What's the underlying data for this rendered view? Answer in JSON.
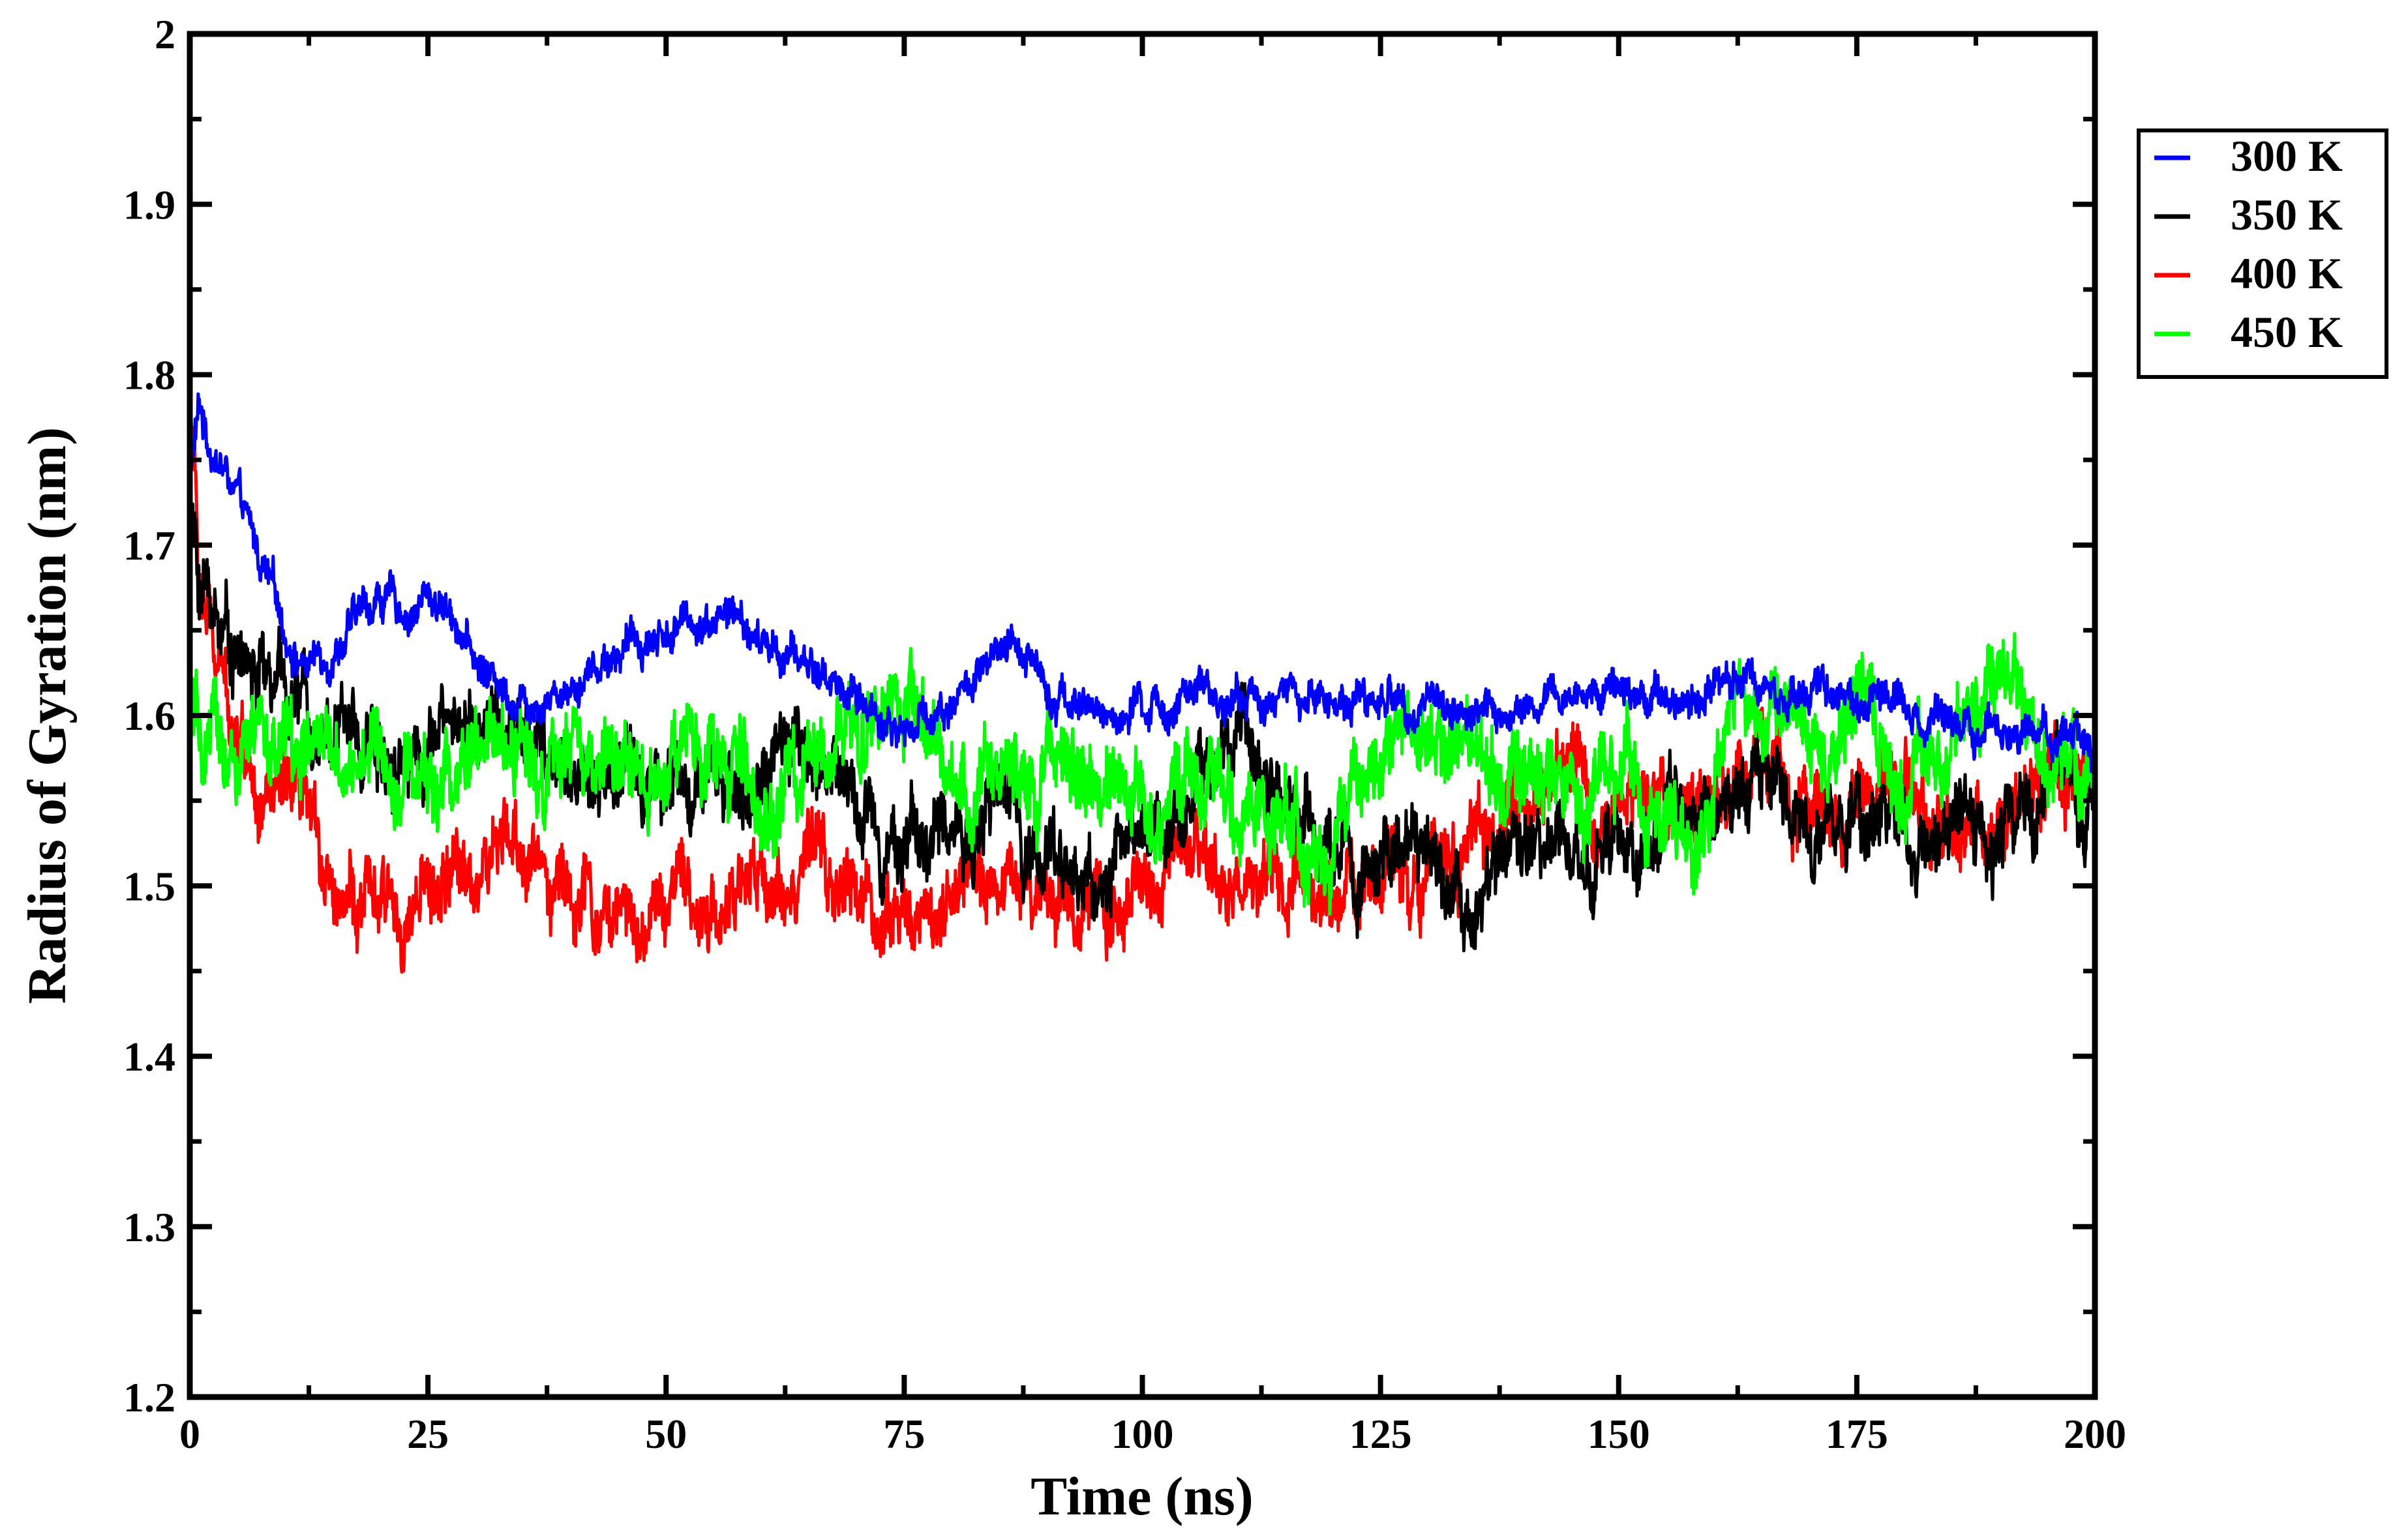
{
  "chart_data": {
    "type": "line",
    "title": "",
    "xlabel": "Time (ns)",
    "ylabel": "Radius of Gyration (nm)",
    "xlim": [
      0,
      200
    ],
    "ylim": [
      1.2,
      2.0
    ],
    "xticks": [
      "0",
      "25",
      "50",
      "75",
      "100",
      "125",
      "150",
      "175",
      "200"
    ],
    "yticks": [
      "1.2",
      "1.3",
      "1.4",
      "1.5",
      "1.6",
      "1.7",
      "1.8",
      "1.9",
      "2"
    ],
    "grid": false,
    "legend_position": "top-right, outside plot",
    "series": [
      {
        "name": "300 K",
        "color": "#0000ff",
        "noise": 0.009,
        "x": [
          0,
          1,
          2,
          4,
          6,
          8,
          10,
          12,
          15,
          18,
          20,
          23,
          25,
          28,
          30,
          35,
          40,
          45,
          50,
          55,
          57,
          60,
          65,
          70,
          75,
          80,
          85,
          88,
          90,
          95,
          100,
          105,
          110,
          115,
          120,
          125,
          130,
          135,
          140,
          145,
          150,
          155,
          160,
          163,
          165,
          170,
          175,
          180,
          185,
          190,
          195,
          200
        ],
        "values": [
          1.74,
          1.78,
          1.76,
          1.74,
          1.71,
          1.68,
          1.65,
          1.63,
          1.64,
          1.66,
          1.67,
          1.66,
          1.67,
          1.66,
          1.63,
          1.61,
          1.62,
          1.64,
          1.65,
          1.66,
          1.66,
          1.64,
          1.63,
          1.61,
          1.59,
          1.61,
          1.63,
          1.64,
          1.62,
          1.6,
          1.6,
          1.61,
          1.61,
          1.61,
          1.61,
          1.61,
          1.61,
          1.6,
          1.6,
          1.61,
          1.62,
          1.61,
          1.62,
          1.63,
          1.62,
          1.61,
          1.61,
          1.61,
          1.6,
          1.6,
          1.59,
          1.59
        ]
      },
      {
        "name": "350 K",
        "color": "#000000",
        "noise": 0.018,
        "x": [
          0,
          1,
          3,
          6,
          10,
          15,
          20,
          25,
          30,
          35,
          40,
          45,
          50,
          55,
          60,
          65,
          70,
          75,
          80,
          85,
          90,
          95,
          100,
          105,
          110,
          115,
          120,
          125,
          130,
          135,
          140,
          145,
          150,
          155,
          160,
          165,
          170,
          175,
          180,
          185,
          190,
          195,
          200
        ],
        "values": [
          1.72,
          1.68,
          1.66,
          1.63,
          1.61,
          1.6,
          1.58,
          1.59,
          1.6,
          1.58,
          1.57,
          1.56,
          1.57,
          1.55,
          1.56,
          1.58,
          1.55,
          1.53,
          1.53,
          1.55,
          1.52,
          1.5,
          1.53,
          1.56,
          1.58,
          1.55,
          1.52,
          1.51,
          1.51,
          1.5,
          1.51,
          1.52,
          1.52,
          1.54,
          1.55,
          1.56,
          1.55,
          1.54,
          1.54,
          1.53,
          1.54,
          1.55,
          1.55
        ]
      },
      {
        "name": "400 K",
        "color": "#ff0000",
        "noise": 0.018,
        "x": [
          0,
          1,
          3,
          5,
          8,
          12,
          15,
          18,
          20,
          25,
          30,
          35,
          40,
          43,
          45,
          50,
          55,
          60,
          65,
          70,
          75,
          80,
          85,
          90,
          95,
          100,
          105,
          110,
          115,
          120,
          125,
          130,
          135,
          140,
          145,
          150,
          155,
          160,
          165,
          170,
          175,
          180,
          185,
          190,
          195,
          200
        ],
        "values": [
          1.8,
          1.68,
          1.62,
          1.6,
          1.56,
          1.53,
          1.51,
          1.49,
          1.48,
          1.49,
          1.51,
          1.52,
          1.5,
          1.48,
          1.48,
          1.49,
          1.49,
          1.5,
          1.51,
          1.49,
          1.48,
          1.49,
          1.51,
          1.5,
          1.49,
          1.49,
          1.5,
          1.5,
          1.49,
          1.49,
          1.51,
          1.52,
          1.53,
          1.54,
          1.56,
          1.55,
          1.54,
          1.56,
          1.57,
          1.55,
          1.54,
          1.55,
          1.54,
          1.54,
          1.55,
          1.56
        ]
      },
      {
        "name": "450 K",
        "color": "#00ff00",
        "noise": 0.02,
        "x": [
          0,
          1,
          3,
          5,
          10,
          15,
          20,
          25,
          30,
          35,
          40,
          45,
          50,
          55,
          60,
          65,
          70,
          72,
          75,
          80,
          85,
          90,
          95,
          100,
          105,
          110,
          115,
          120,
          125,
          130,
          135,
          140,
          145,
          150,
          155,
          158,
          160,
          163,
          165,
          170,
          175,
          180,
          185,
          188,
          190,
          193,
          195,
          200
        ],
        "values": [
          1.62,
          1.57,
          1.58,
          1.57,
          1.58,
          1.57,
          1.58,
          1.56,
          1.57,
          1.58,
          1.57,
          1.56,
          1.58,
          1.57,
          1.55,
          1.56,
          1.6,
          1.62,
          1.6,
          1.55,
          1.56,
          1.58,
          1.56,
          1.55,
          1.56,
          1.55,
          1.54,
          1.52,
          1.58,
          1.59,
          1.58,
          1.56,
          1.55,
          1.56,
          1.55,
          1.53,
          1.57,
          1.6,
          1.59,
          1.59,
          1.6,
          1.57,
          1.58,
          1.6,
          1.64,
          1.6,
          1.58,
          1.57
        ]
      }
    ]
  }
}
